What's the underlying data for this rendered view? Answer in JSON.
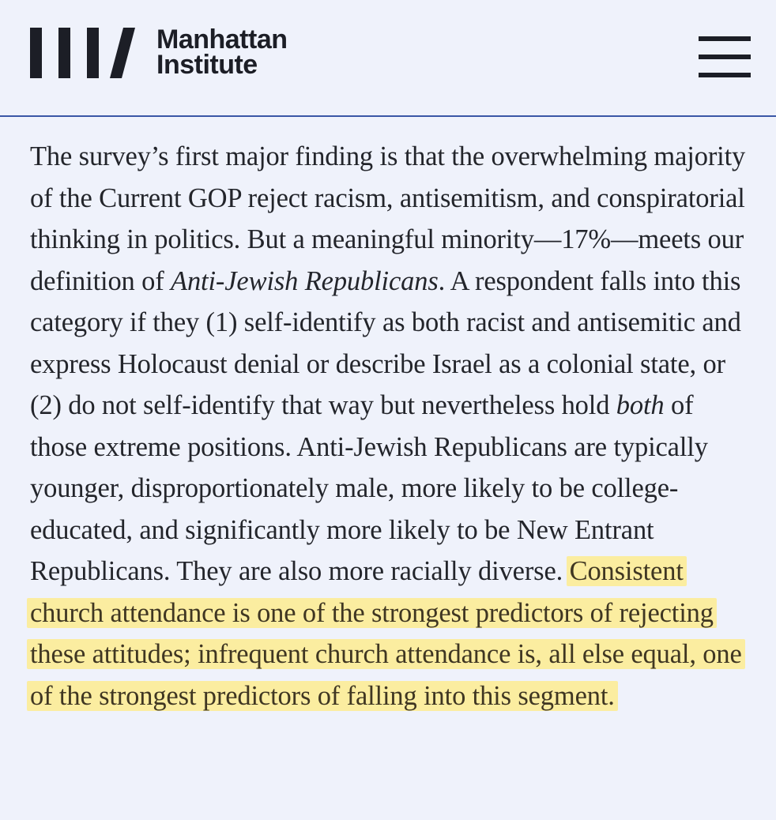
{
  "brand": {
    "name_line1": "Manhattan",
    "name_line2": "Institute",
    "color": "#1c1e26"
  },
  "header": {
    "menu_icon": "hamburger-menu-icon",
    "divider_color": "#3a56a6"
  },
  "article": {
    "text_1": "The survey’s first major finding is that the overwhelming majority of the Current GOP reject racism, antisemitism, and conspiratorial thinking in politics. But a meaningful minority—17%—meets our definition of ",
    "em_1": "Anti-Jewish Republicans",
    "text_2": ". A respondent falls into this category if they (1) self-identify as both racist and antisemitic and express Holocaust denial or describe Israel as a colonial state, or (2) do not self-identify that way but nevertheless hold ",
    "em_2": "both",
    "text_3": " of those extreme positions. Anti-Jewish Republicans are typically younger, disproportionately male, more likely to be college-educated, and significantly more likely to be New Entrant Republicans. They are also more racially diverse. ",
    "highlight": "Consistent church attendance is one of the strongest predictors of rejecting these attitudes; infrequent church attendance is, all else equal, one of the strongest predictors of falling into this segment.",
    "highlight_color": "#fbeda0"
  }
}
